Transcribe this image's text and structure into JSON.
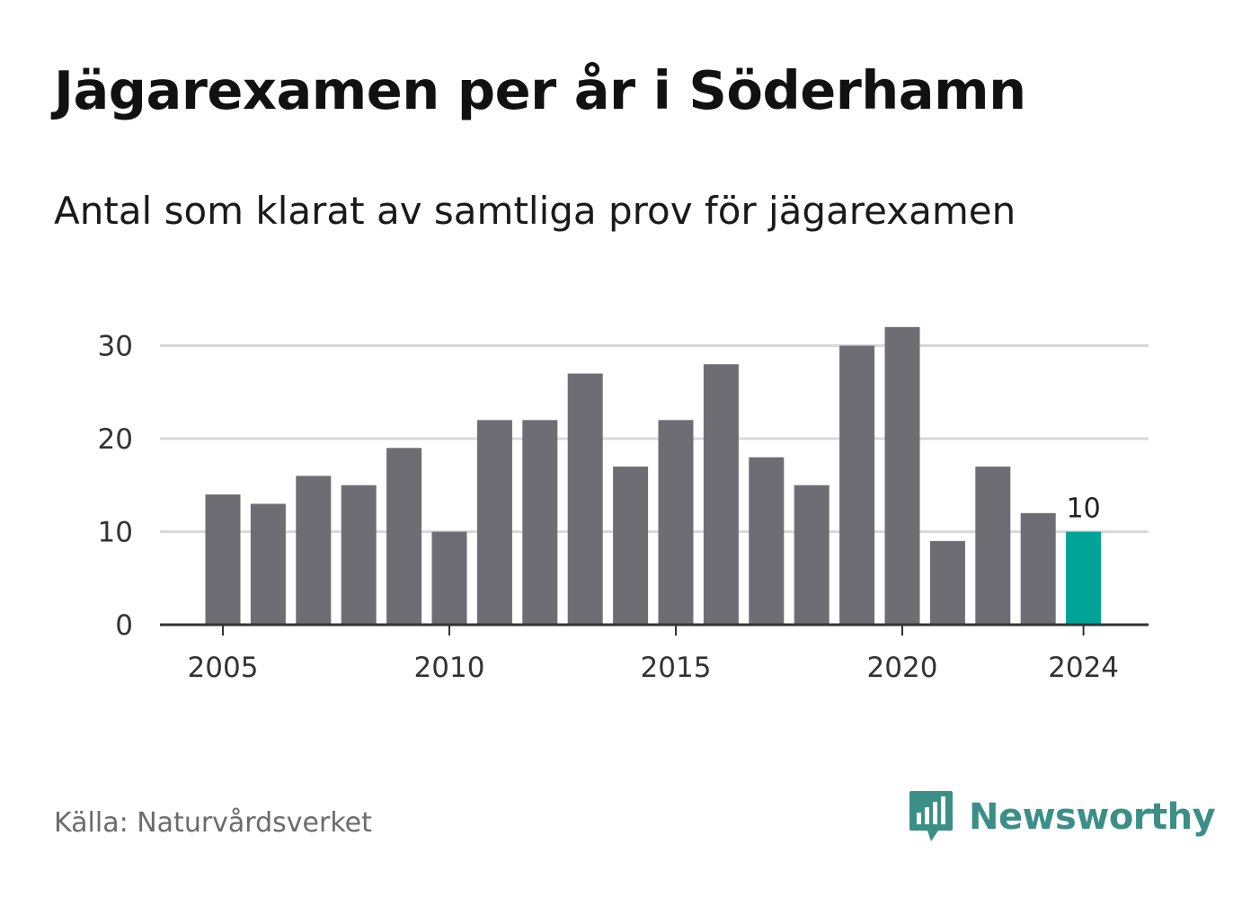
{
  "title": "Jägarexamen per år i Söderhamn",
  "subtitle": "Antal som klarat av samtliga prov för jägarexamen",
  "source": "Källa: Naturvårdsverket",
  "brand": {
    "name": "Newsworthy",
    "icon": "newsworthy-logo-icon",
    "color": "#3b8f86"
  },
  "colors": {
    "bar": "#6e6d73",
    "highlight": "#00a398",
    "grid": "#d9d9d9",
    "axis": "#333333"
  },
  "chart_data": {
    "type": "bar",
    "title": "Jägarexamen per år i Söderhamn",
    "subtitle": "Antal som klarat av samtliga prov för jägarexamen",
    "categories": [
      "2005",
      "2006",
      "2007",
      "2008",
      "2009",
      "2010",
      "2011",
      "2012",
      "2013",
      "2014",
      "2015",
      "2016",
      "2017",
      "2018",
      "2019",
      "2020",
      "2021",
      "2022",
      "2023",
      "2024"
    ],
    "values": [
      14,
      13,
      16,
      15,
      19,
      10,
      22,
      22,
      27,
      17,
      22,
      28,
      18,
      15,
      30,
      32,
      9,
      17,
      12,
      10
    ],
    "highlight_index": 19,
    "data_labels": [
      {
        "category": "2024",
        "text": "10"
      }
    ],
    "x_ticks": [
      "2005",
      "2010",
      "2015",
      "2020",
      "2024"
    ],
    "y_ticks": [
      0,
      10,
      20,
      30
    ],
    "ylim": [
      0,
      32
    ],
    "grid": true,
    "legend": "none",
    "xlabel": "",
    "ylabel": ""
  }
}
